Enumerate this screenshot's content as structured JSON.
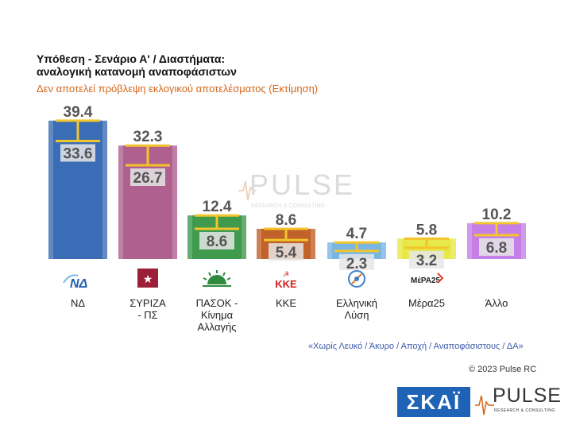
{
  "title_line1": "Υπόθεση - Σενάριο Α' / Διαστήματα:",
  "title_line2": "αναλογική κατανομή αναποφάσιστων",
  "subtitle": "Δεν αποτελεί πρόβλεψη εκλογικού αποτελέσματος   (Εκτίμηση)",
  "note": "«Χωρίς Λευκό / Άκυρο / Αποχή / Αναποφάσιστους / ΔΑ»",
  "copyright": "© 2023 Pulse RC",
  "logos": {
    "skai": "ΣΚΑΪ",
    "pulse": "PULSE",
    "pulse_sub": "RESEARCH & CONSULTING"
  },
  "watermark": {
    "word": "PULSE",
    "sub": "RESEARCH & CONSULTING"
  },
  "chart_data": {
    "type": "bar",
    "categories": [
      "ΝΔ",
      "ΣΥΡΙΖΑ - ΠΣ",
      "ΠΑΣΟΚ - Κίνημα Αλλαγής",
      "ΚΚΕ",
      "Ελληνική Λύση",
      "Μέρα25",
      "Άλλο"
    ],
    "category_lines": [
      [
        "ΝΔ"
      ],
      [
        "ΣΥΡΙΖΑ",
        "- ΠΣ"
      ],
      [
        "ΠΑΣΟΚ -",
        "Κίνημα",
        "Αλλαγής"
      ],
      [
        "ΚΚΕ"
      ],
      [
        "Ελληνική",
        "Λύση"
      ],
      [
        "Μέρα25"
      ],
      [
        "Άλλο"
      ]
    ],
    "series": [
      {
        "values": [
          33.6,
          26.7,
          8.6,
          5.4,
          2.3,
          3.2,
          6.8
        ]
      },
      {
        "values": [
          39.4,
          32.3,
          12.4,
          8.6,
          4.7,
          5.8,
          10.2
        ]
      }
    ],
    "colors": [
      "#3a6db5",
      "#b0608e",
      "#3f9a4e",
      "#c0622a",
      "#79b6e4",
      "#e7e84a",
      "#c57fe6"
    ],
    "range_color": "#f2c52c",
    "icons": [
      "nd-logo-icon",
      "syriza-logo-icon",
      "pasok-logo-icon",
      "kke-logo-icon",
      "elliniki-lysi-logo-icon",
      "mera25-logo-icon",
      "none"
    ],
    "icon_text": {
      "nd": "ΝΔ",
      "kke": "ΚΚΕ",
      "mera25": "ΜέΡΑ25"
    },
    "ylim": [
      0,
      42
    ],
    "grid": false
  }
}
